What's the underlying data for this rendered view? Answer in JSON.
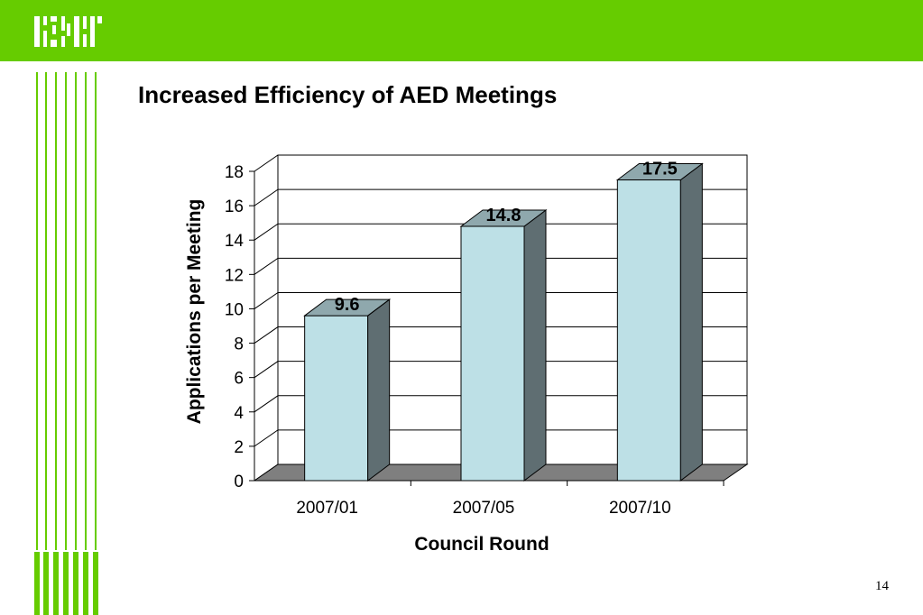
{
  "slide": {
    "title": "Increased Efficiency of AED Meetings",
    "page_number": "14",
    "brand_color": "#66cc00"
  },
  "chart_data": {
    "type": "bar",
    "categories": [
      "2007/01",
      "2007/05",
      "2007/10"
    ],
    "values": [
      9.6,
      14.8,
      17.5
    ],
    "data_labels": [
      "9.6",
      "14.8",
      "17.5"
    ],
    "title": "",
    "xlabel": "Council Round",
    "ylabel": "Applications per Meeting",
    "ylim": [
      0,
      18
    ],
    "yticks": [
      0,
      2,
      4,
      6,
      8,
      10,
      12,
      14,
      16,
      18
    ],
    "grid": true,
    "three_d": true,
    "bar_color": "#bde0e6",
    "bar_side_color": "#5f6e72",
    "bar_top_color": "#8fa8ad",
    "floor_color": "#7f7f7f"
  }
}
